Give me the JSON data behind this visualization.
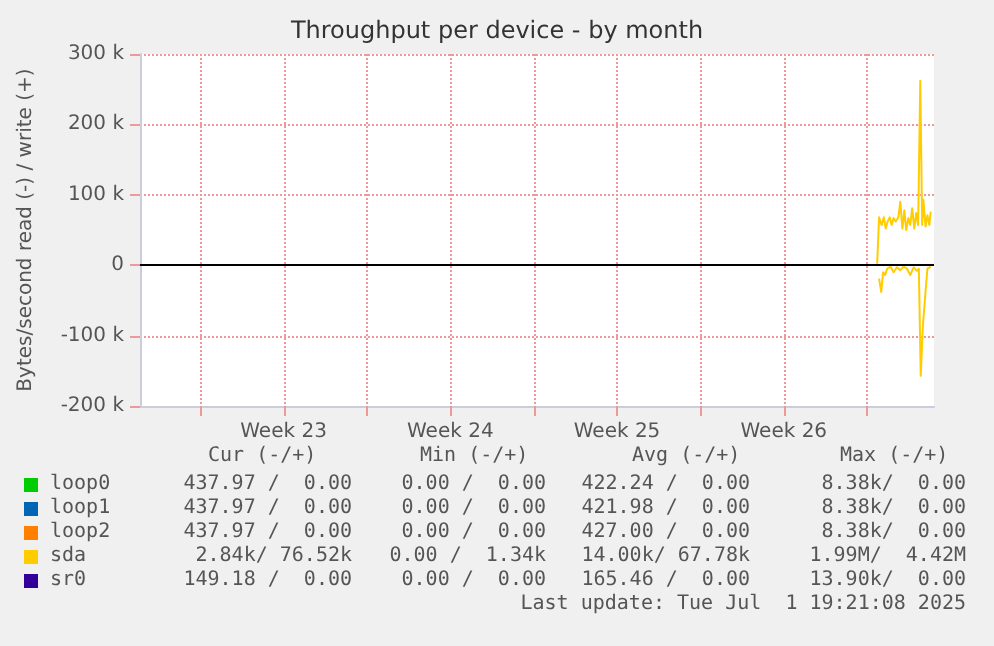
{
  "chart_data": {
    "type": "line",
    "title": "Throughput per device - by month",
    "ylabel": "Bytes/second read (-) / write (+)",
    "xlim": [
      "2025-05-29T11:20",
      "2025-07-01T19:21"
    ],
    "xticks": [
      {
        "value": "2025-06-01T00:00",
        "label": null
      },
      {
        "value": "2025-06-04T12:00",
        "label": "Week 23"
      },
      {
        "value": "2025-06-08T00:00",
        "label": null
      },
      {
        "value": "2025-06-11T12:00",
        "label": "Week 24"
      },
      {
        "value": "2025-06-15T00:00",
        "label": null
      },
      {
        "value": "2025-06-18T12:00",
        "label": "Week 25"
      },
      {
        "value": "2025-06-22T00:00",
        "label": null
      },
      {
        "value": "2025-06-25T12:00",
        "label": "Week 26"
      },
      {
        "value": "2025-06-29T00:00",
        "label": null
      }
    ],
    "ylim": [
      -200000,
      300000
    ],
    "yticks": [
      {
        "value": -200000,
        "label": "-200 k"
      },
      {
        "value": -100000,
        "label": "-100 k"
      },
      0,
      {
        "value": 100000,
        "label": "100 k"
      },
      {
        "value": 200000,
        "label": "200 k"
      },
      {
        "value": 300000,
        "label": "300 k"
      }
    ],
    "grid": true,
    "marker": "none",
    "line_style": "solid",
    "ref_lines": [
      {
        "axis": "y",
        "value": 0,
        "label": null,
        "color": "#000000"
      }
    ],
    "series": [
      {
        "name": "loop0",
        "color": "#00cc00"
      },
      {
        "name": "loop1",
        "color": "#0066b3"
      },
      {
        "name": "loop2",
        "color": "#ff8000"
      },
      {
        "name": "sda",
        "color": "#ffcc00",
        "x": [
          "2025-06-29T10:05",
          "2025-06-29T12:00",
          "2025-06-29T14:38",
          "2025-06-29T16:48",
          "2025-06-29T18:43",
          "2025-06-29T20:38",
          "2025-06-29T22:48",
          "2025-06-30T00:43",
          "2025-06-30T02:38",
          "2025-06-30T04:48",
          "2025-06-30T07:26",
          "2025-06-30T09:22",
          "2025-06-30T11:31",
          "2025-06-30T13:26",
          "2025-06-30T15:22",
          "2025-06-30T17:31",
          "2025-06-30T19:26",
          "2025-06-30T21:22",
          "2025-06-30T23:31",
          "2025-07-01T01:26",
          "2025-07-01T03:22",
          "2025-07-01T05:31",
          "2025-07-01T07:26",
          "2025-07-01T08:38",
          "2025-07-01T10:48",
          "2025-07-01T12:43",
          "2025-07-01T14:38",
          "2025-07-01T16:05"
        ],
        "values": [
          2000,
          68000,
          57000,
          68000,
          52000,
          62000,
          68000,
          57000,
          67000,
          62000,
          68000,
          90000,
          52000,
          78000,
          50000,
          67000,
          57000,
          81000,
          52000,
          74000,
          57000,
          262000,
          57000,
          93000,
          55000,
          71000,
          57000,
          76000
        ]
      },
      {
        "name": "sr0",
        "color": "#330099"
      },
      {
        "color": "#ffcc00",
        "x": [
          "2025-06-29T12:00",
          "2025-06-29T14:10",
          "2025-06-29T16:05",
          "2025-06-29T18:00",
          "2025-06-29T20:10",
          "2025-06-29T23:31",
          "2025-06-30T02:38",
          "2025-06-30T06:00",
          "2025-06-30T09:22",
          "2025-06-30T12:43",
          "2025-06-30T16:05",
          "2025-06-30T19:26",
          "2025-06-30T22:48",
          "2025-07-01T02:10",
          "2025-07-01T04:05",
          "2025-07-01T06:00",
          "2025-07-01T08:10",
          "2025-07-01T10:48",
          "2025-07-01T12:43",
          "2025-07-01T16:05"
        ],
        "values": [
          -19000,
          -38000,
          -10000,
          -14000,
          -5000,
          -2000,
          -10000,
          -3000,
          -7000,
          -2000,
          -5000,
          -14000,
          -3000,
          -8000,
          -5000,
          -157000,
          -86000,
          -38000,
          -5000,
          -2000
        ]
      }
    ],
    "legend": "bottom",
    "annotations": [
      "Cur (-/+)",
      "Min (-/+)",
      "Avg (-/+)",
      "Max (-/+)",
      "437.97 /  0.00",
      "0.00 /  0.00",
      "422.24 /  0.00",
      "8.38k/  0.00",
      "437.97 /  0.00",
      "0.00 /  0.00",
      "421.98 /  0.00",
      "8.38k/  0.00",
      "437.97 /  0.00",
      "0.00 /  0.00",
      "427.00 /  0.00",
      "8.38k/  0.00",
      "2.84k/ 76.52k",
      "0.00 /  1.34k",
      "14.00k/ 67.78k",
      "1.99M/  4.42M",
      "149.18 /  0.00",
      "0.00 /  0.00",
      "165.46 /  0.00",
      "13.90k/  0.00",
      "Last update: Tue Jul  1 19:21:08 2025"
    ]
  }
}
